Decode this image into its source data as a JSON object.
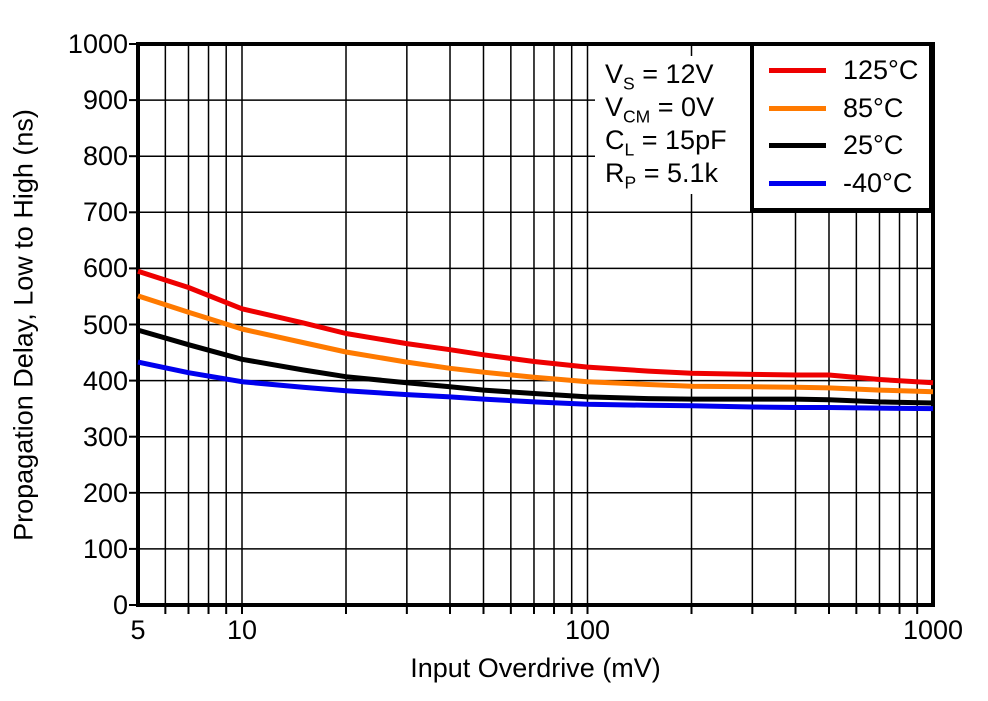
{
  "chart_data": {
    "type": "line",
    "title": "",
    "xlabel": "Input Overdrive (mV)",
    "ylabel": "Propagation Delay, Low to High (ns)",
    "x_scale": "log",
    "y_scale": "linear",
    "xlim": [
      5,
      1000
    ],
    "ylim": [
      0,
      1000
    ],
    "grid": true,
    "x_gridlines": [
      6,
      7,
      8,
      9,
      10,
      20,
      30,
      40,
      50,
      60,
      70,
      80,
      90,
      100,
      200,
      300,
      400,
      500,
      600,
      700,
      800,
      900
    ],
    "y_gridlines": [
      100,
      200,
      300,
      400,
      500,
      600,
      700,
      800,
      900
    ],
    "x_tick_labels": [
      {
        "value": 5,
        "label": "5"
      },
      {
        "value": 10,
        "label": "10"
      },
      {
        "value": 100,
        "label": "100"
      },
      {
        "value": 1000,
        "label": "1000"
      }
    ],
    "y_tick_labels": [
      {
        "value": 0,
        "label": "0"
      },
      {
        "value": 100,
        "label": "100"
      },
      {
        "value": 200,
        "label": "200"
      },
      {
        "value": 300,
        "label": "300"
      },
      {
        "value": 400,
        "label": "400"
      },
      {
        "value": 500,
        "label": "500"
      },
      {
        "value": 600,
        "label": "600"
      },
      {
        "value": 700,
        "label": "700"
      },
      {
        "value": 800,
        "label": "800"
      },
      {
        "value": 900,
        "label": "900"
      },
      {
        "value": 1000,
        "label": "1000"
      }
    ],
    "legend_position": "top-right",
    "conditions": [
      {
        "base": "V",
        "sub": "S",
        "rest": " = 12V"
      },
      {
        "base": "V",
        "sub": "CM",
        "rest": " = 0V"
      },
      {
        "base": "C",
        "sub": "L",
        "rest": " = 15pF"
      },
      {
        "base": "R",
        "sub": "P",
        "rest": " = 5.1k"
      }
    ],
    "x": [
      5,
      7,
      10,
      15,
      20,
      30,
      40,
      50,
      70,
      100,
      150,
      200,
      300,
      400,
      500,
      700,
      1000
    ],
    "series": [
      {
        "name": "125°C",
        "color": "#EE0000",
        "y": [
          595,
          566,
          528,
          503,
          484,
          466,
          455,
          446,
          434,
          424,
          417,
          413,
          411,
          410,
          410,
          402,
          396
        ]
      },
      {
        "name": "85°C",
        "color": "#FF7A00",
        "y": [
          551,
          522,
          492,
          468,
          451,
          433,
          422,
          415,
          406,
          398,
          393,
          390,
          389,
          388,
          387,
          383,
          380
        ]
      },
      {
        "name": "25°C",
        "color": "#000000",
        "y": [
          490,
          464,
          438,
          419,
          407,
          396,
          389,
          383,
          377,
          371,
          368,
          367,
          367,
          367,
          366,
          362,
          360
        ]
      },
      {
        "name": "-40°C",
        "color": "#0000EE",
        "y": [
          433,
          414,
          398,
          388,
          382,
          375,
          371,
          367,
          362,
          358,
          356,
          355,
          353,
          352,
          352,
          351,
          350
        ]
      }
    ]
  }
}
